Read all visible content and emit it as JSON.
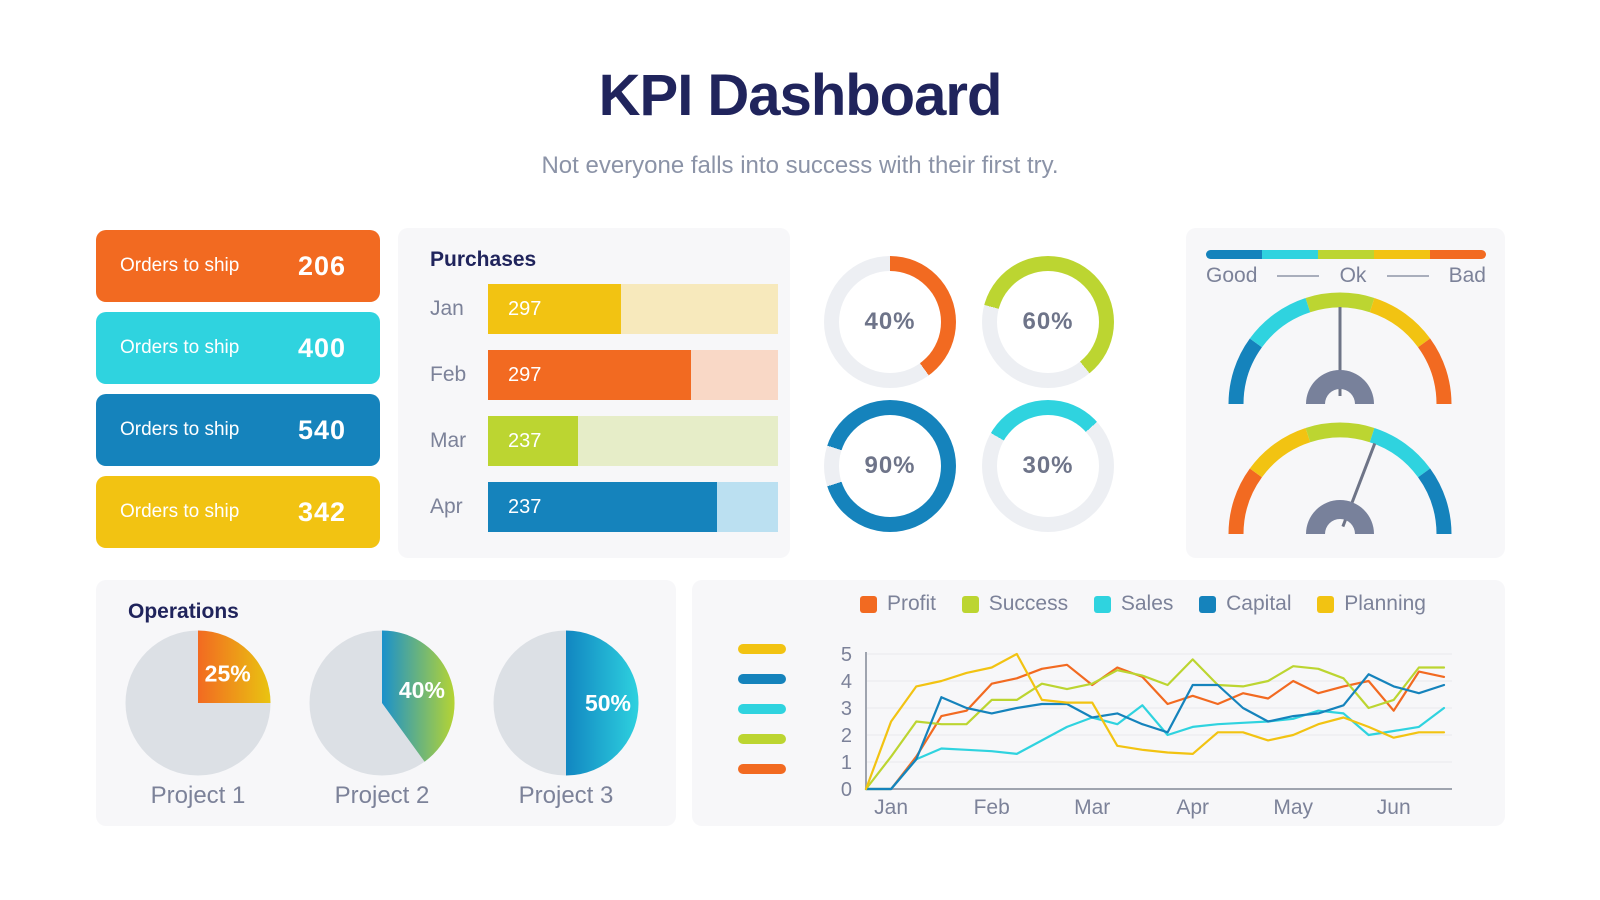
{
  "header": {
    "title": "KPI Dashboard",
    "subtitle": "Not everyone falls into success with their first try."
  },
  "order_cards": [
    {
      "label": "Orders to ship",
      "value": "206",
      "color": "#F26A21"
    },
    {
      "label": "Orders to ship",
      "value": "400",
      "color": "#2FD3DF"
    },
    {
      "label": "Orders to ship",
      "value": "540",
      "color": "#1583BC"
    },
    {
      "label": "Orders to ship",
      "value": "342",
      "color": "#F2C312"
    }
  ],
  "gauges": {
    "legend_labels": [
      "Good",
      "Ok",
      "Bad"
    ],
    "bar_colors": [
      "#1583BC",
      "#2FD3DF",
      "#BCD531",
      "#F2C312",
      "#F26A21"
    ],
    "items": [
      {
        "segments": [
          "#1583BC",
          "#2FD3DF",
          "#BCD531",
          "#F2C312",
          "#F26A21"
        ],
        "needle_deg": 0
      },
      {
        "segments": [
          "#F26A21",
          "#F2C312",
          "#BCD531",
          "#2FD3DF",
          "#1583BC"
        ],
        "needle_deg": 21
      }
    ]
  },
  "chart_data": [
    {
      "id": "purchases",
      "type": "bar",
      "orientation": "horizontal",
      "title": "Purchases",
      "categories": [
        "Jan",
        "Feb",
        "Mar",
        "Apr"
      ],
      "values": [
        297,
        297,
        237,
        237
      ],
      "fill_pct": [
        46,
        70,
        31,
        79
      ],
      "bar_colors": [
        "#F2C312",
        "#F26A21",
        "#BCD531",
        "#1583BC"
      ],
      "track_colors": [
        "#F7E9BC",
        "#F9D8C6",
        "#E6EDC8",
        "#BBE0F1"
      ]
    },
    {
      "id": "progress-donuts",
      "type": "pie",
      "subtype": "donut",
      "track_color": "#EDEFF3",
      "items": [
        {
          "label": "40%",
          "value": 40,
          "color": "#F26A21",
          "start_deg": 0
        },
        {
          "label": "60%",
          "value": 60,
          "color": "#BCD531",
          "start_deg": -75
        },
        {
          "label": "90%",
          "value": 90,
          "color": "#1583BC",
          "start_deg": -72
        },
        {
          "label": "30%",
          "value": 30,
          "color": "#2FD3DF",
          "start_deg": -60
        }
      ]
    },
    {
      "id": "quality-gauges",
      "type": "gauge",
      "legend_labels": [
        "Good",
        "Ok",
        "Bad"
      ],
      "scale_colors": [
        "#1583BC",
        "#2FD3DF",
        "#BCD531",
        "#F2C312",
        "#F26A21"
      ],
      "needle_positions": [
        "center",
        "right-of-center"
      ]
    },
    {
      "id": "operations",
      "type": "pie",
      "title": "Operations",
      "rest_color": "#DCE0E5",
      "items": [
        {
          "label": "Project 1",
          "value_label": "25%",
          "value": 25,
          "gradient": [
            "#F26A21",
            "#E9C411"
          ]
        },
        {
          "label": "Project 2",
          "value_label": "40%",
          "value": 40,
          "gradient": [
            "#1B91CB",
            "#B5D433"
          ]
        },
        {
          "label": "Project 3",
          "value_label": "50%",
          "value": 50,
          "gradient": [
            "#1186C1",
            "#2ED1DF"
          ]
        }
      ]
    },
    {
      "id": "monthly-trends",
      "type": "line",
      "x_labels": [
        "Jan",
        "Feb",
        "Mar",
        "Apr",
        "May",
        "Jun"
      ],
      "ylim": [
        0,
        5
      ],
      "y_ticks": [
        0,
        1,
        2,
        3,
        4,
        5
      ],
      "grid": true,
      "legend_position": "top",
      "side_dash_colors": [
        "#F2C312",
        "#1583BC",
        "#2FD3DF",
        "#BCD531",
        "#F26A21"
      ],
      "series": [
        {
          "name": "Profit",
          "color": "#F26A21",
          "values": [
            0,
            0,
            1.2,
            2.7,
            2.9,
            3.9,
            4.1,
            4.45,
            4.6,
            3.85,
            4.5,
            4.15,
            3.15,
            3.45,
            3.15,
            3.55,
            3.35,
            4.0,
            3.55,
            3.8,
            4.0,
            2.9,
            4.35,
            4.15
          ]
        },
        {
          "name": "Success",
          "color": "#BCD531",
          "values": [
            0,
            1.2,
            2.5,
            2.4,
            2.4,
            3.3,
            3.3,
            3.9,
            3.7,
            3.9,
            4.4,
            4.2,
            3.85,
            4.8,
            3.85,
            3.8,
            4.0,
            4.55,
            4.45,
            4.1,
            3.0,
            3.3,
            4.5,
            4.5
          ]
        },
        {
          "name": "Sales",
          "color": "#2FD3DF",
          "values": [
            0,
            0,
            1.1,
            1.5,
            1.45,
            1.4,
            1.3,
            1.8,
            2.3,
            2.65,
            2.4,
            3.1,
            2.0,
            2.3,
            2.4,
            2.45,
            2.5,
            2.6,
            2.9,
            2.8,
            2.0,
            2.15,
            2.3,
            3.0
          ]
        },
        {
          "name": "Capital",
          "color": "#1583BC",
          "values": [
            0,
            0,
            1.1,
            3.4,
            3.0,
            2.8,
            3.0,
            3.15,
            3.15,
            2.65,
            2.8,
            2.4,
            2.1,
            3.85,
            3.85,
            3.0,
            2.5,
            2.7,
            2.8,
            3.1,
            4.25,
            3.8,
            3.55,
            3.85
          ]
        },
        {
          "name": "Planning",
          "color": "#F2C312",
          "values": [
            0,
            2.5,
            3.8,
            4.0,
            4.3,
            4.5,
            5.0,
            3.3,
            3.2,
            3.2,
            1.6,
            1.45,
            1.35,
            1.3,
            2.1,
            2.1,
            1.8,
            2.0,
            2.4,
            2.65,
            2.3,
            1.9,
            2.1,
            2.1
          ]
        }
      ]
    }
  ]
}
